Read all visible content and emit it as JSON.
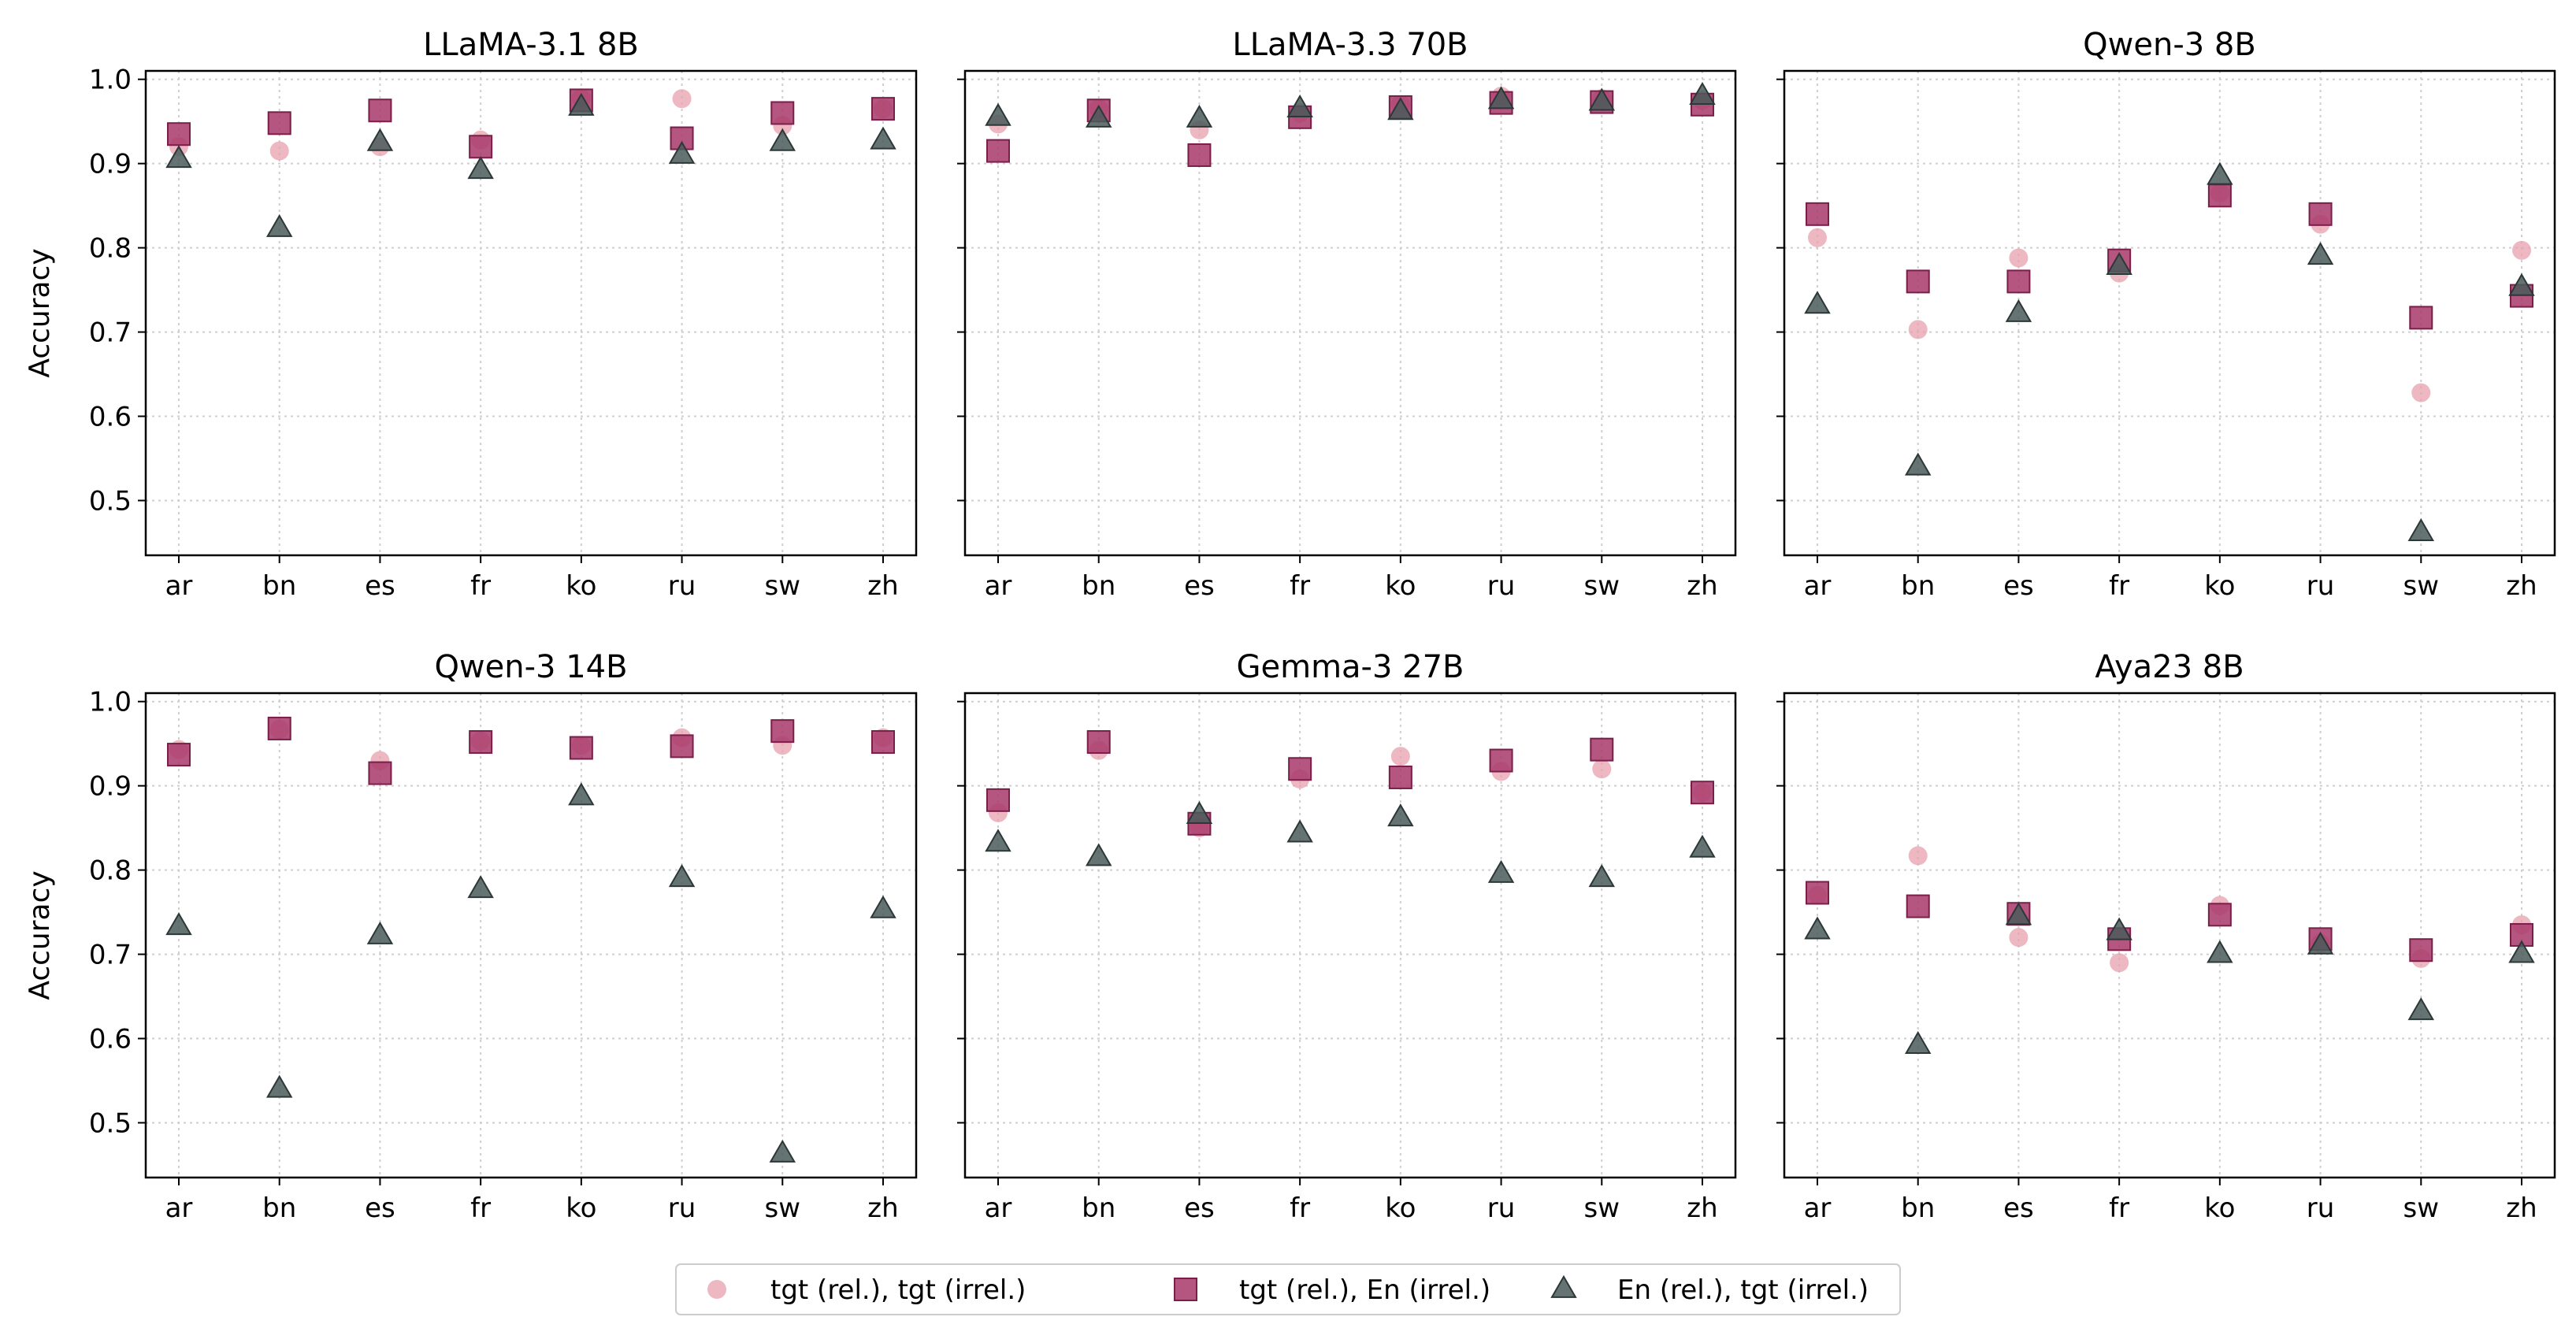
{
  "chart_data": {
    "type": "scatter",
    "figure_layout": "2x3 grid of subplots, shared y axis per row",
    "shared": {
      "categories": [
        "ar",
        "bn",
        "es",
        "fr",
        "ko",
        "ru",
        "sw",
        "zh"
      ],
      "ylabel": "Accuracy",
      "ylim": [
        0.435,
        1.01
      ],
      "yticks": [
        0.5,
        0.6,
        0.7,
        0.8,
        0.9,
        1.0
      ],
      "grid": "dotted",
      "legend_position": "bottom-center"
    },
    "legend": [
      {
        "key": "tt",
        "label": "tgt (rel.), tgt (irrel.)",
        "marker": "circle",
        "color": "#e8a0ae"
      },
      {
        "key": "te",
        "label": "tgt (rel.), En (irrel.)",
        "marker": "square",
        "color": "#a8386a"
      },
      {
        "key": "et",
        "label": "En (rel.), tgt (irrel.)",
        "marker": "triangle",
        "color": "#4a5a5a"
      }
    ],
    "panels": [
      {
        "title": "LLaMA-3.1 8B",
        "series": {
          "tt": [
            0.92,
            0.915,
            0.92,
            0.928,
            0.978,
            0.977,
            0.945,
            0.965
          ],
          "te": [
            0.935,
            0.948,
            0.963,
            0.92,
            0.975,
            0.93,
            0.96,
            0.965
          ],
          "et": [
            0.905,
            0.823,
            0.925,
            0.892,
            0.967,
            0.91,
            0.925,
            0.927
          ]
        }
      },
      {
        "title": "LLaMA-3.3 70B",
        "series": {
          "tt": [
            0.947,
            0.965,
            0.94,
            0.96,
            0.97,
            0.98,
            0.977,
            0.975
          ],
          "te": [
            0.915,
            0.963,
            0.91,
            0.955,
            0.967,
            0.972,
            0.973,
            0.97
          ],
          "et": [
            0.955,
            0.953,
            0.953,
            0.965,
            0.962,
            0.975,
            0.973,
            0.98
          ]
        }
      },
      {
        "title": "Qwen-3 8B",
        "series": {
          "tt": [
            0.812,
            0.703,
            0.788,
            0.77,
            0.865,
            0.828,
            0.628,
            0.797
          ],
          "te": [
            0.84,
            0.76,
            0.76,
            0.785,
            0.862,
            0.84,
            0.717,
            0.743
          ],
          "et": [
            0.732,
            0.54,
            0.722,
            0.778,
            0.885,
            0.79,
            0.462,
            0.753
          ]
        }
      },
      {
        "title": "Qwen-3 14B",
        "series": {
          "tt": [
            0.943,
            0.967,
            0.93,
            0.953,
            0.948,
            0.957,
            0.948,
            0.957
          ],
          "te": [
            0.937,
            0.968,
            0.915,
            0.952,
            0.945,
            0.947,
            0.965,
            0.952
          ],
          "et": [
            0.733,
            0.54,
            0.722,
            0.777,
            0.887,
            0.79,
            0.463,
            0.753
          ]
        }
      },
      {
        "title": "Gemma-3 27B",
        "series": {
          "tt": [
            0.868,
            0.942,
            0.85,
            0.908,
            0.935,
            0.917,
            0.92,
            0.892
          ],
          "te": [
            0.883,
            0.952,
            0.855,
            0.92,
            0.91,
            0.93,
            0.943,
            0.892
          ],
          "et": [
            0.832,
            0.815,
            0.865,
            0.843,
            0.862,
            0.795,
            0.79,
            0.825
          ]
        }
      },
      {
        "title": "Aya23 8B",
        "series": {
          "tt": [
            0.77,
            0.817,
            0.72,
            0.69,
            0.758,
            0.713,
            0.695,
            0.735
          ],
          "te": [
            0.773,
            0.757,
            0.748,
            0.718,
            0.747,
            0.718,
            0.705,
            0.723
          ],
          "et": [
            0.728,
            0.592,
            0.745,
            0.727,
            0.7,
            0.71,
            0.632,
            0.7
          ]
        }
      }
    ]
  }
}
